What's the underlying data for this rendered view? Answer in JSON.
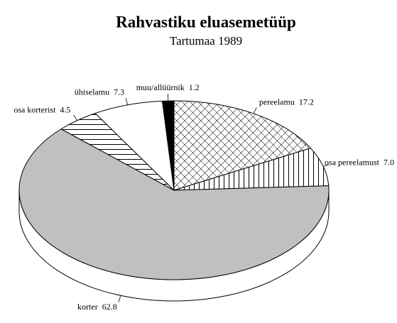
{
  "chart_data": {
    "type": "pie3d",
    "title": "Rahvastiku eluasemetüüp",
    "subtitle": "Tartumaa 1989",
    "categories": [
      "pereelamu",
      "osa pereelamust",
      "korter",
      "osa korterist",
      "ühiselamu",
      "muu/allüürnik"
    ],
    "values": [
      17.2,
      7.0,
      62.8,
      4.5,
      7.3,
      1.2
    ],
    "value_labels": [
      "17.2",
      "7.0",
      "62.8",
      "4.5",
      "7.3",
      "1.2"
    ],
    "colors": [
      "url(#crosshatch)",
      "url(#vertical)",
      "#c0c0c0",
      "url(#horizontal)",
      "#ffffff",
      "#000000"
    ],
    "start_angle": 0,
    "direction": "clockwise"
  }
}
